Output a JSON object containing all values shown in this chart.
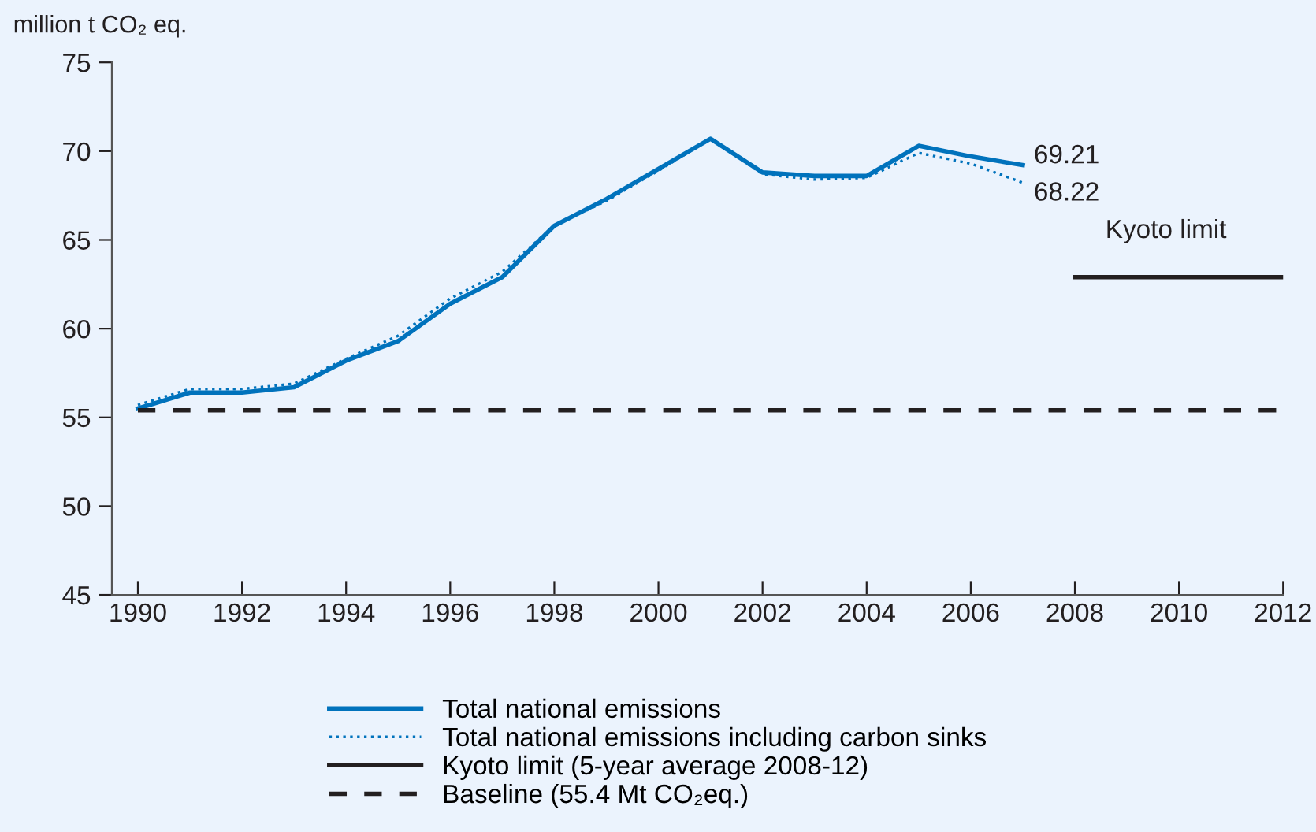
{
  "chart_data": {
    "type": "line",
    "ylabel": "million t CO₂ eq.",
    "x": [
      1990,
      1991,
      1992,
      1993,
      1994,
      1995,
      1996,
      1997,
      1998,
      1999,
      2000,
      2001,
      2002,
      2003,
      2004,
      2005,
      2006,
      2007
    ],
    "series": [
      {
        "name": "Total national emissions",
        "color": "#0072bc",
        "line_style": "solid",
        "values": [
          55.5,
          56.4,
          56.4,
          56.7,
          58.2,
          59.3,
          61.4,
          62.9,
          65.8,
          67.3,
          69.0,
          70.7,
          68.8,
          68.6,
          68.6,
          70.3,
          69.7,
          69.21
        ],
        "value_labels": [
          null,
          null,
          null,
          null,
          null,
          null,
          null,
          null,
          null,
          null,
          null,
          null,
          null,
          null,
          null,
          null,
          null,
          "69.21"
        ]
      },
      {
        "name": "Total national emissions including carbon sinks",
        "color": "#0072bc",
        "line_style": "dotted",
        "values": [
          55.7,
          56.6,
          56.6,
          56.9,
          58.3,
          59.6,
          61.7,
          63.2,
          65.8,
          67.2,
          68.9,
          70.7,
          68.7,
          68.4,
          68.5,
          69.9,
          69.3,
          68.22
        ],
        "value_labels": [
          null,
          null,
          null,
          null,
          null,
          null,
          null,
          null,
          null,
          null,
          null,
          null,
          null,
          null,
          null,
          null,
          null,
          "68.22"
        ]
      },
      {
        "name": "Kyoto limit (5-year average 2008-12)",
        "color": "#231f20",
        "line_style": "solid",
        "x": [
          2008,
          2012
        ],
        "values": [
          62.9,
          62.9
        ]
      },
      {
        "name": "Baseline (55.4 Mt CO₂eq.)",
        "color": "#231f20",
        "line_style": "dashed",
        "x": [
          1990,
          2012
        ],
        "values": [
          55.4,
          55.4
        ]
      }
    ],
    "annotations": [
      "Kyoto limit"
    ],
    "xlim": [
      1989.5,
      2012
    ],
    "xticks": [
      1990,
      1992,
      1994,
      1996,
      1998,
      2000,
      2002,
      2004,
      2006,
      2008,
      2010,
      2012
    ],
    "ylim": [
      45,
      75
    ],
    "yticks": [
      45,
      50,
      55,
      60,
      65,
      70,
      75
    ],
    "grid": false,
    "legend": "bottom",
    "marker": "none"
  }
}
